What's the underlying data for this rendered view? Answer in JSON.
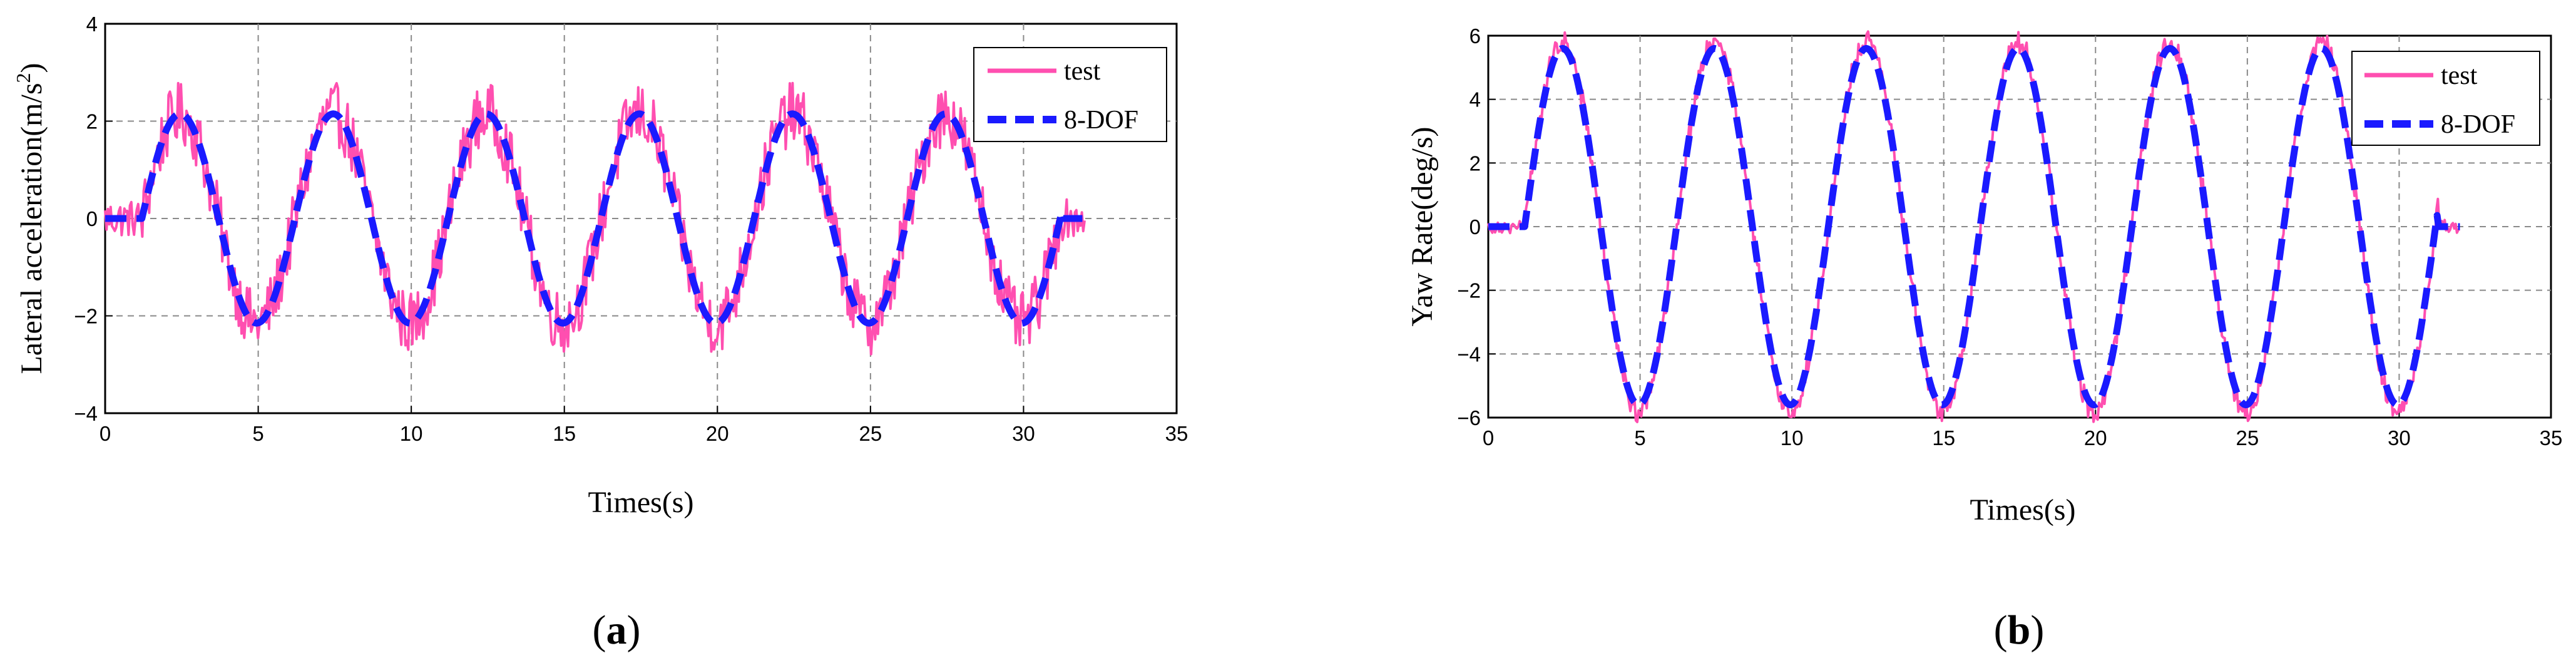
{
  "chart_data": [
    {
      "type": "line",
      "panel_label": "a",
      "xlabel": "Times(s)",
      "ylabel": "Lateral acceleration(m/s",
      "ylabel_sup": "2",
      "ylabel_end": ")",
      "xlim": [
        0,
        35
      ],
      "ylim": [
        -4,
        4
      ],
      "x_ticks": [
        0,
        5,
        10,
        15,
        20,
        25,
        30,
        35
      ],
      "y_ticks": [
        -4,
        -2,
        0,
        2,
        4
      ],
      "grid": true,
      "legend_position": "top-right",
      "series": [
        {
          "name": "test",
          "style": "solid",
          "color": "#ff4fb0",
          "period": 5,
          "amplitude": 2.15,
          "start": 1.2,
          "end": 31.3,
          "noise": 0.65,
          "x_end": 32
        },
        {
          "name": "8-DOF",
          "style": "dashed",
          "color": "#1a1aff",
          "period": 5,
          "amplitude": 2.15,
          "start": 1.2,
          "end": 31.3,
          "noise": 0,
          "x_end": 32
        }
      ]
    },
    {
      "type": "line",
      "panel_label": "b",
      "xlabel": "Times(s)",
      "ylabel": "Yaw Rate(deg/s)",
      "xlim": [
        0,
        35
      ],
      "ylim": [
        -6,
        6
      ],
      "x_ticks": [
        0,
        5,
        10,
        15,
        20,
        25,
        30,
        35
      ],
      "y_ticks": [
        -6,
        -4,
        -2,
        0,
        2,
        4,
        6
      ],
      "grid": true,
      "legend_position": "top-right",
      "series": [
        {
          "name": "test",
          "style": "solid",
          "color": "#ff4fb0",
          "period": 5,
          "amplitude": 5.8,
          "start": 1.2,
          "end": 31.3,
          "noise": 0.35,
          "x_end": 32
        },
        {
          "name": "8-DOF",
          "style": "dashed",
          "color": "#1a1aff",
          "period": 5,
          "amplitude": 5.6,
          "start": 1.2,
          "end": 31.3,
          "noise": 0,
          "x_end": 32
        }
      ]
    }
  ],
  "captions": {
    "a": "a",
    "b": "b"
  }
}
